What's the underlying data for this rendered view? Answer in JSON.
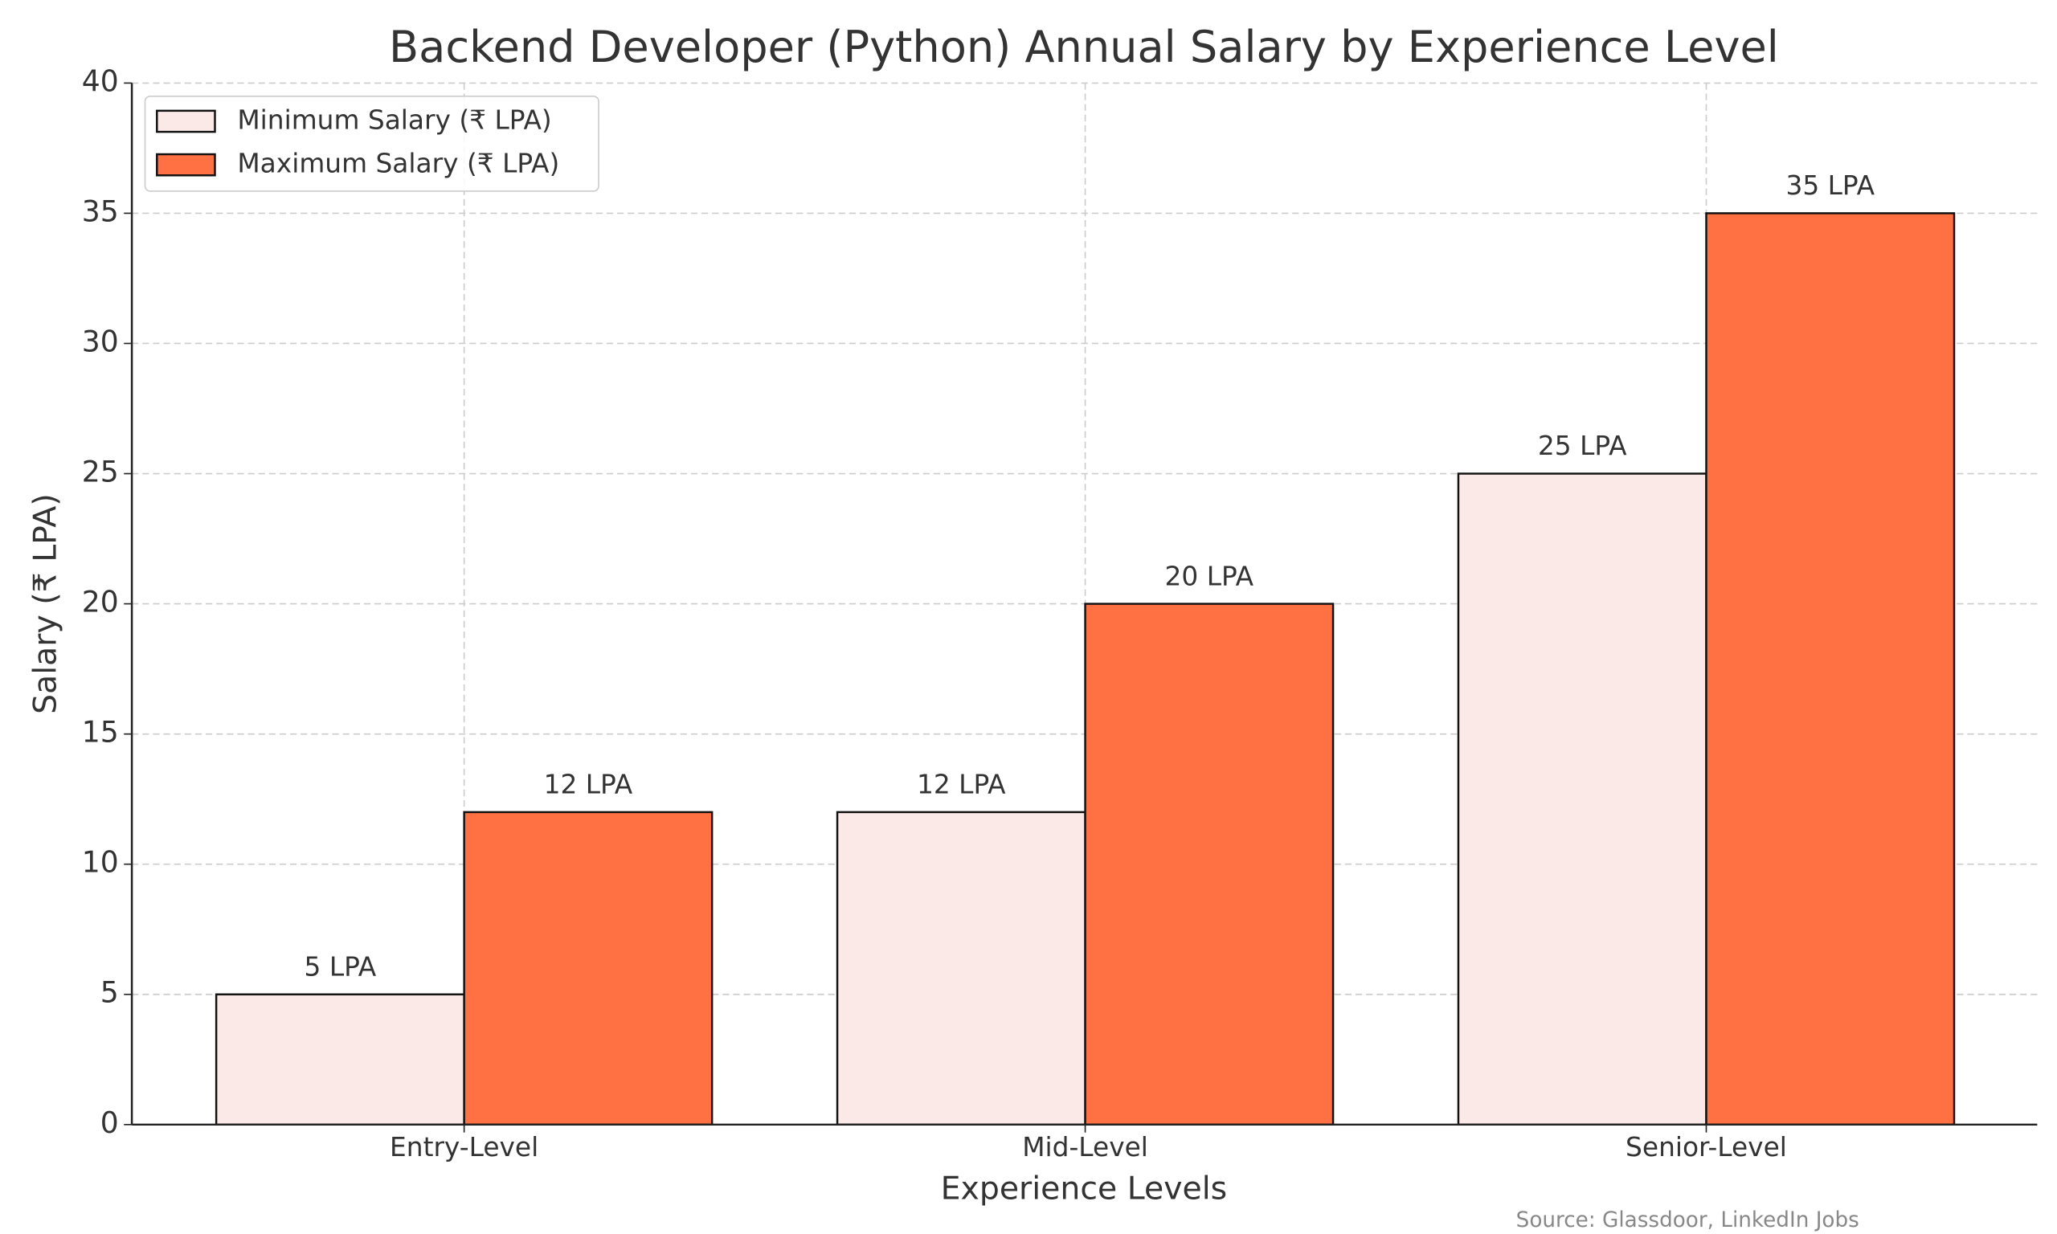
{
  "chart_data": {
    "type": "bar",
    "title": "Backend Developer (Python) Annual Salary by Experience Level",
    "x_label": "Experience Levels",
    "y_label": "Salary (₹ LPA)",
    "source": "Source: Glassdoor, LinkedIn Jobs",
    "categories": [
      "Entry-Level",
      "Mid-Level",
      "Senior-Level"
    ],
    "series": [
      {
        "name": "Minimum Salary (₹ LPA)",
        "color": "#fbe9e7",
        "values": [
          5,
          12,
          25
        ],
        "value_labels": [
          "5 LPA",
          "12 LPA",
          "25 LPA"
        ]
      },
      {
        "name": "Maximum Salary (₹ LPA)",
        "color": "#ff7043",
        "values": [
          12,
          20,
          35
        ],
        "value_labels": [
          "12 LPA",
          "20 LPA",
          "35 LPA"
        ]
      }
    ],
    "ylim": [
      0,
      40
    ],
    "yticks": [
      0,
      5,
      10,
      15,
      20,
      25,
      30,
      35,
      40
    ],
    "grid": true,
    "legend": "upper left"
  }
}
